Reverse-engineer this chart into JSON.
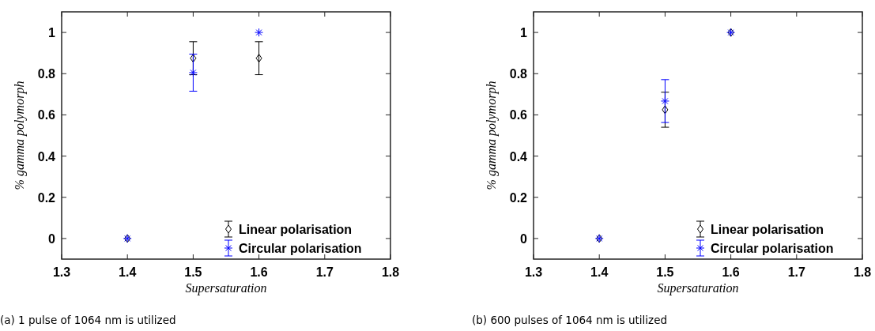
{
  "chart_data": [
    {
      "type": "scatter",
      "xlabel": "Supersaturation",
      "ylabel": "% gamma polymorph",
      "x": [
        1.4,
        1.5,
        1.6
      ],
      "xlim": [
        1.3,
        1.8
      ],
      "xticks": [
        1.3,
        1.4,
        1.5,
        1.6,
        1.7,
        1.8
      ],
      "ylim": [
        -0.1,
        1.1
      ],
      "yticks": [
        0,
        0.2,
        0.4,
        0.6,
        0.8,
        1
      ],
      "legend": "bottom right",
      "annotations": [
        "(a) 1 pulse of 1064 nm is utilized"
      ],
      "series": [
        {
          "name": "Linear polarisation",
          "color": "#000000",
          "marker": "diamond",
          "values": [
            0,
            0.875,
            0.875
          ],
          "errors": [
            null,
            0.08,
            0.08
          ]
        },
        {
          "name": "Circular polarisation",
          "color": "#0000ff",
          "marker": "cross",
          "values": [
            0,
            0.805,
            1.0
          ],
          "errors": [
            null,
            0.09,
            null
          ]
        }
      ]
    },
    {
      "type": "scatter",
      "xlabel": "Supersaturation",
      "ylabel": "% gamma polymorph",
      "x": [
        1.4,
        1.5,
        1.6
      ],
      "xlim": [
        1.3,
        1.8
      ],
      "xticks": [
        1.3,
        1.4,
        1.5,
        1.6,
        1.7,
        1.8
      ],
      "ylim": [
        -0.1,
        1.1
      ],
      "yticks": [
        0,
        0.2,
        0.4,
        0.6,
        0.8,
        1
      ],
      "legend": "bottom right",
      "annotations": [
        "(b) 600 pulses of 1064 nm is utilized"
      ],
      "series": [
        {
          "name": "Linear polarisation",
          "color": "#000000",
          "marker": "diamond",
          "values": [
            0,
            0.625,
            1.0
          ],
          "errors": [
            null,
            0.085,
            null
          ]
        },
        {
          "name": "Circular polarisation",
          "color": "#0000ff",
          "marker": "cross",
          "values": [
            0,
            0.667,
            1.0
          ],
          "errors": [
            null,
            0.104,
            null
          ]
        }
      ]
    }
  ]
}
